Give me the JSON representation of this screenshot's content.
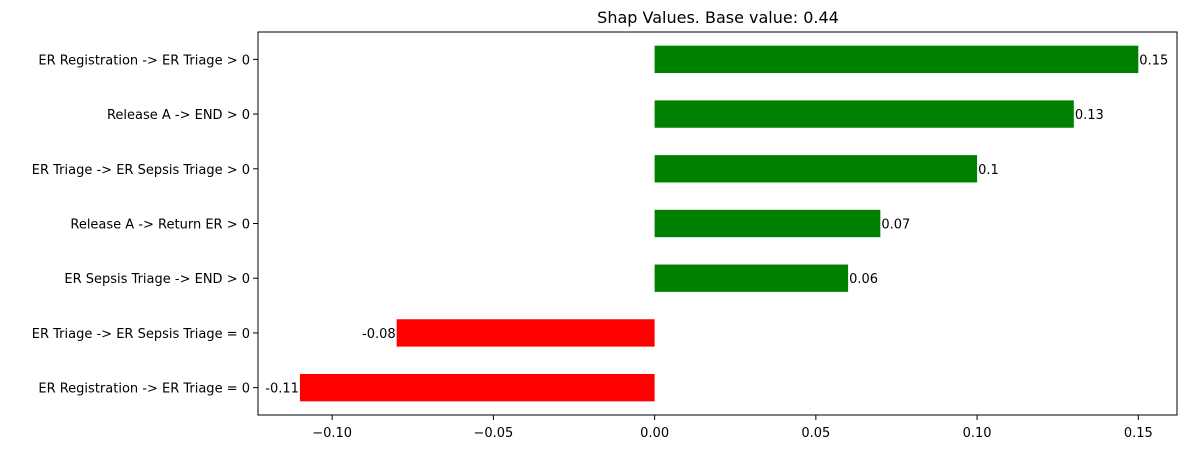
{
  "chart_data": {
    "type": "bar",
    "orientation": "horizontal",
    "title": "Shap Values. Base value: 0.44",
    "xlabel": "",
    "ylabel": "",
    "xlim": [
      -0.123,
      0.162
    ],
    "xticks": [
      -0.1,
      -0.05,
      0.0,
      0.05,
      0.1,
      0.15
    ],
    "xtick_labels": [
      "−0.10",
      "−0.05",
      "0.00",
      "0.05",
      "0.10",
      "0.15"
    ],
    "categories": [
      "ER Registration -> ER Triage > 0",
      "Release A -> END > 0",
      "ER Triage -> ER Sepsis Triage > 0",
      "Release A -> Return ER > 0",
      "ER Sepsis Triage -> END > 0",
      "ER Triage -> ER Sepsis Triage = 0",
      "ER Registration -> ER Triage = 0"
    ],
    "values": [
      0.15,
      0.13,
      0.1,
      0.07,
      0.06,
      -0.08,
      -0.11
    ],
    "value_labels": [
      "0.15",
      "0.13",
      "0.1",
      "0.07",
      "0.06",
      "-0.08",
      "-0.11"
    ],
    "colors": {
      "positive": "#008000",
      "negative": "#ff0000"
    },
    "grid": false,
    "legend": "none"
  }
}
